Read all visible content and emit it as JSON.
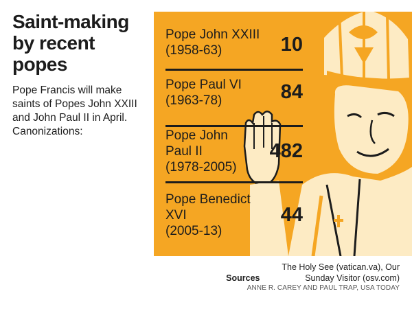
{
  "title": "Saint-making by recent popes",
  "subtitle": "Pope Francis will make saints of Popes John XXIII and John Paul II in April.  Canonizations:",
  "chart_data": {
    "type": "table",
    "rows": [
      {
        "name": "Pope John XXIII",
        "years": "(1958-63)",
        "value": 10
      },
      {
        "name": "Pope Paul VI",
        "years": "(1963-78)",
        "value": 84
      },
      {
        "name": "Pope John Paul II",
        "years": "(1978-2005)",
        "value": 482
      },
      {
        "name": "Pope Benedict XVI",
        "years": "(2005-13)",
        "value": 44
      }
    ]
  },
  "sources_label": "Sources",
  "sources_text": "The Holy See (vatican.va), Our Sunday Visitor (osv.com)",
  "credit": "ANNE R. CAREY AND PAUL TRAP, USA TODAY",
  "colors": {
    "panel": "#f5a623",
    "ink": "#1c1c1c",
    "art_light": "#fdebc4"
  },
  "illustration": "pope-illustration"
}
